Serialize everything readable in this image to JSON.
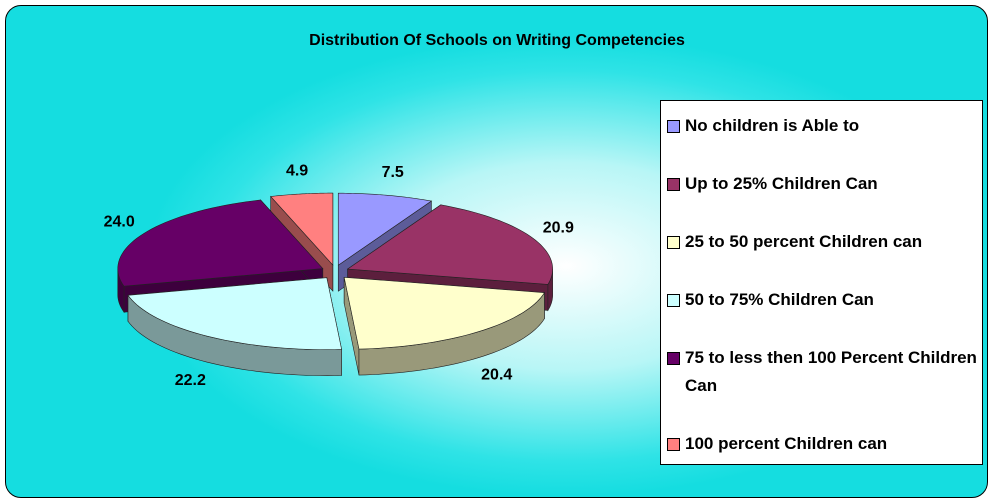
{
  "chart_data": {
    "type": "pie3d",
    "title": "Distribution Of Schools on Writing Competencies",
    "categories": [
      "No children is Able to",
      "Up to 25% Children Can",
      "25 to 50 percent Children can",
      "50 to 75% Children Can",
      "75 to less then 100 Percent Children Can",
      "100 percent Children can"
    ],
    "values": [
      7.5,
      20.9,
      20.4,
      22.2,
      24.0,
      4.9
    ],
    "value_labels": [
      "7.5",
      "20.9",
      "20.4",
      "22.2",
      "24.0",
      "4.9"
    ],
    "colors": [
      "#9999ff",
      "#993366",
      "#ffffcc",
      "#ccffff",
      "#660066",
      "#ff8080"
    ],
    "legend": "right"
  }
}
